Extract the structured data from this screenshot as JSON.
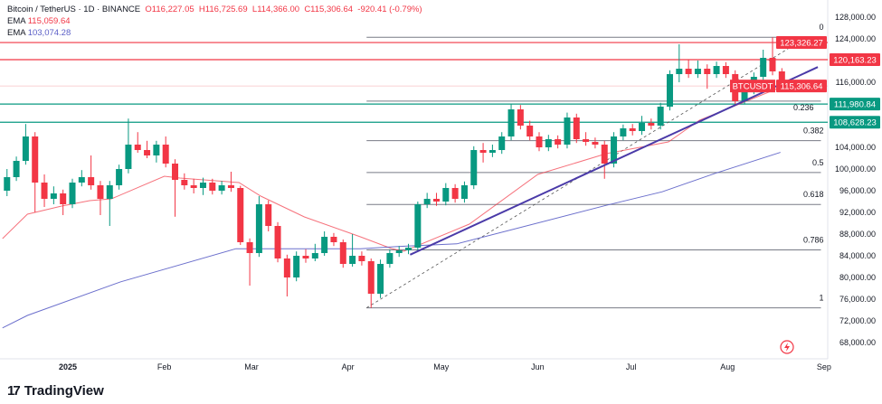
{
  "header": {
    "symbol": "Bitcoin / TetherUS · 1D · BINANCE",
    "open": "O116,227.05",
    "high": "H116,725.69",
    "low": "L114,366.00",
    "close": "C115,306.64",
    "change": "-920.41 (-0.79%)",
    "ema1_label": "EMA",
    "ema1_value": "115,059.64",
    "ema2_label": "EMA",
    "ema2_value": "103,074.28"
  },
  "brand": {
    "name": "TradingView",
    "logo_text": "17"
  },
  "colors": {
    "up": "#089981",
    "down": "#f23645",
    "ema_fast": "#f23645",
    "ema_slow": "#5b5fc7",
    "trendline": "#4a3aa8",
    "support": "#089981",
    "resistance": "#f23645"
  },
  "chart_data": {
    "type": "candlestick",
    "x_ticks": [
      {
        "date": "2025-01-01",
        "label": "2025"
      },
      {
        "date": "2025-02-01",
        "label": "Feb"
      },
      {
        "date": "2025-03-01",
        "label": "Mar"
      },
      {
        "date": "2025-04-01",
        "label": "Apr"
      },
      {
        "date": "2025-05-01",
        "label": "May"
      },
      {
        "date": "2025-06-01",
        "label": "Jun"
      },
      {
        "date": "2025-07-01",
        "label": "Jul"
      },
      {
        "date": "2025-08-01",
        "label": "Aug"
      },
      {
        "date": "2025-09-01",
        "label": "Sep"
      }
    ],
    "y_ticks": [
      "128,000.00",
      "124,000.00",
      "116,000.00",
      "104,000.00",
      "100,000.00",
      "96,000.00",
      "92,000.00",
      "88,000.00",
      "84,000.00",
      "80,000.00",
      "76,000.00",
      "72,000.00",
      "68,000.00"
    ],
    "y_tick_values": [
      128000,
      124000,
      116000,
      104000,
      100000,
      96000,
      92000,
      88000,
      84000,
      80000,
      76000,
      72000,
      68000
    ],
    "ylim": [
      64000,
      131000
    ],
    "candles": [
      [
        "2024-12-11",
        96000,
        100000,
        95000,
        98500
      ],
      [
        "2024-12-14",
        98500,
        102300,
        97800,
        101500
      ],
      [
        "2024-12-17",
        101500,
        108300,
        100800,
        106000
      ],
      [
        "2024-12-20",
        106000,
        106800,
        92000,
        97500
      ],
      [
        "2024-12-23",
        97500,
        99000,
        93000,
        94500
      ],
      [
        "2024-12-26",
        94500,
        96800,
        93500,
        95500
      ],
      [
        "2024-12-29",
        95500,
        96200,
        91500,
        93500
      ],
      [
        "2025-01-01",
        93500,
        98200,
        92800,
        97500
      ],
      [
        "2025-01-04",
        97500,
        99800,
        96800,
        98500
      ],
      [
        "2025-01-07",
        98500,
        102500,
        96200,
        97000
      ],
      [
        "2025-01-10",
        97000,
        97800,
        91500,
        94500
      ],
      [
        "2025-01-13",
        94500,
        97800,
        89500,
        97000
      ],
      [
        "2025-01-16",
        97000,
        100800,
        96200,
        100000
      ],
      [
        "2025-01-19",
        100000,
        109300,
        99200,
        104500
      ],
      [
        "2025-01-22",
        104500,
        106800,
        103000,
        103500
      ],
      [
        "2025-01-25",
        103500,
        105200,
        102000,
        102500
      ],
      [
        "2025-01-28",
        102500,
        105200,
        101200,
        104500
      ],
      [
        "2025-01-31",
        104500,
        106000,
        100300,
        101000
      ],
      [
        "2025-02-03",
        101000,
        101800,
        91200,
        98000
      ],
      [
        "2025-02-06",
        98000,
        99200,
        96200,
        97000
      ],
      [
        "2025-02-09",
        97000,
        98200,
        95500,
        96500
      ],
      [
        "2025-02-12",
        96500,
        98400,
        95200,
        97500
      ],
      [
        "2025-02-15",
        97500,
        98200,
        95300,
        96000
      ],
      [
        "2025-02-18",
        96000,
        97800,
        95300,
        97000
      ],
      [
        "2025-02-21",
        97000,
        99500,
        95800,
        96500
      ],
      [
        "2025-02-24",
        96500,
        96900,
        86000,
        86500
      ],
      [
        "2025-02-27",
        86500,
        87200,
        78500,
        84500
      ],
      [
        "2025-03-02",
        84500,
        95000,
        83800,
        93500
      ],
      [
        "2025-03-05",
        93500,
        94200,
        88500,
        89500
      ],
      [
        "2025-03-08",
        89500,
        90200,
        82800,
        83500
      ],
      [
        "2025-03-11",
        83500,
        84200,
        76500,
        80000
      ],
      [
        "2025-03-14",
        80000,
        84800,
        79300,
        84000
      ],
      [
        "2025-03-17",
        84000,
        85200,
        82700,
        83500
      ],
      [
        "2025-03-20",
        83500,
        86200,
        83000,
        84500
      ],
      [
        "2025-03-23",
        84500,
        88500,
        84000,
        87500
      ],
      [
        "2025-03-26",
        87500,
        88200,
        85800,
        86500
      ],
      [
        "2025-03-29",
        86500,
        87000,
        81800,
        82500
      ],
      [
        "2025-04-01",
        82500,
        88000,
        82000,
        84000
      ],
      [
        "2025-04-04",
        84000,
        84800,
        82200,
        83000
      ],
      [
        "2025-04-07",
        83000,
        83500,
        74400,
        77000
      ],
      [
        "2025-04-10",
        77000,
        83300,
        76200,
        82500
      ],
      [
        "2025-04-13",
        82500,
        85200,
        81800,
        84500
      ],
      [
        "2025-04-16",
        84500,
        85800,
        83800,
        85000
      ],
      [
        "2025-04-19",
        85000,
        86200,
        84300,
        85500
      ],
      [
        "2025-04-22",
        85500,
        94000,
        85000,
        93500
      ],
      [
        "2025-04-25",
        93500,
        95600,
        92800,
        94500
      ],
      [
        "2025-04-28",
        94500,
        95600,
        93200,
        94000
      ],
      [
        "2025-05-01",
        94000,
        97400,
        93300,
        96500
      ],
      [
        "2025-05-04",
        96500,
        97200,
        93800,
        94500
      ],
      [
        "2025-05-07",
        94500,
        97700,
        93800,
        97000
      ],
      [
        "2025-05-10",
        97000,
        104200,
        96300,
        103500
      ],
      [
        "2025-05-13",
        103500,
        104800,
        101200,
        103000
      ],
      [
        "2025-05-16",
        103000,
        104500,
        102200,
        103500
      ],
      [
        "2025-05-19",
        103500,
        106800,
        102800,
        106000
      ],
      [
        "2025-05-22",
        106000,
        112000,
        105300,
        111000
      ],
      [
        "2025-05-25",
        111000,
        111800,
        107300,
        108000
      ],
      [
        "2025-05-28",
        108000,
        108900,
        105300,
        106000
      ],
      [
        "2025-05-31",
        106000,
        106800,
        103300,
        104000
      ],
      [
        "2025-06-03",
        104000,
        106300,
        103300,
        105500
      ],
      [
        "2025-06-06",
        105500,
        106200,
        103800,
        104500
      ],
      [
        "2025-06-09",
        104500,
        110400,
        103800,
        109500
      ],
      [
        "2025-06-12",
        109500,
        110200,
        104800,
        105500
      ],
      [
        "2025-06-15",
        105500,
        106800,
        104300,
        105000
      ],
      [
        "2025-06-18",
        105000,
        105800,
        103800,
        104500
      ],
      [
        "2025-06-21",
        104500,
        105200,
        98200,
        101000
      ],
      [
        "2025-06-24",
        101000,
        106800,
        100300,
        106000
      ],
      [
        "2025-06-27",
        106000,
        108200,
        105300,
        107500
      ],
      [
        "2025-06-30",
        107500,
        108300,
        106200,
        107000
      ],
      [
        "2025-07-03",
        107000,
        109800,
        106300,
        108500
      ],
      [
        "2025-07-06",
        108500,
        109300,
        107300,
        108000
      ],
      [
        "2025-07-09",
        108000,
        112200,
        107300,
        111500
      ],
      [
        "2025-07-12",
        111500,
        118200,
        110800,
        117500
      ],
      [
        "2025-07-15",
        117500,
        123000,
        116000,
        118500
      ],
      [
        "2025-07-18",
        118500,
        120200,
        116800,
        117500
      ],
      [
        "2025-07-21",
        117500,
        120000,
        116800,
        118500
      ],
      [
        "2025-07-24",
        118500,
        119300,
        114800,
        117500
      ],
      [
        "2025-07-27",
        117500,
        119800,
        116800,
        119000
      ],
      [
        "2025-07-30",
        119000,
        119700,
        116800,
        117500
      ],
      [
        "2025-08-02",
        117500,
        118200,
        112000,
        112500
      ],
      [
        "2025-08-05",
        112500,
        115200,
        111900,
        114500
      ],
      [
        "2025-08-08",
        114500,
        117800,
        113800,
        117000
      ],
      [
        "2025-08-11",
        117000,
        122000,
        116300,
        120500
      ],
      [
        "2025-08-14",
        120500,
        124300,
        117300,
        118000
      ],
      [
        "2025-08-17",
        118000,
        118600,
        114366,
        115306.64
      ]
    ],
    "series": [
      {
        "type": "line",
        "role": "ema-fast",
        "points": [
          [
            "2024-12-11",
            87167
          ],
          [
            "2024-12-19",
            91667
          ],
          [
            "2024-12-30",
            93167
          ],
          [
            "2025-01-08",
            94167
          ],
          [
            "2025-01-15",
            94500
          ],
          [
            "2025-02-01",
            98667
          ],
          [
            "2025-02-06",
            98333
          ],
          [
            "2025-02-25",
            97500
          ],
          [
            "2025-03-04",
            95000
          ],
          [
            "2025-03-18",
            91167
          ],
          [
            "2025-04-05",
            87500
          ],
          [
            "2025-04-15",
            85333
          ],
          [
            "2025-04-19",
            84833
          ],
          [
            "2025-05-10",
            89833
          ],
          [
            "2025-06-01",
            99000
          ],
          [
            "2025-06-23",
            102833
          ],
          [
            "2025-07-13",
            105000
          ],
          [
            "2025-07-23",
            109000
          ],
          [
            "2025-08-07",
            112500
          ],
          [
            "2025-08-18",
            115059.64
          ]
        ]
      },
      {
        "type": "line",
        "role": "ema-slow",
        "points": [
          [
            "2024-12-11",
            70700
          ],
          [
            "2024-12-19",
            73000
          ],
          [
            "2025-01-18",
            79200
          ],
          [
            "2025-02-24",
            85300
          ],
          [
            "2025-04-05",
            85300
          ],
          [
            "2025-04-17",
            85700
          ],
          [
            "2025-05-06",
            86200
          ],
          [
            "2025-06-23",
            93300
          ],
          [
            "2025-07-11",
            95800
          ],
          [
            "2025-07-28",
            99200
          ],
          [
            "2025-08-18",
            103074.28
          ]
        ]
      }
    ],
    "trendline": {
      "from": [
        "2025-04-21",
        84200
      ],
      "to": [
        "2025-08-30",
        118800
      ]
    },
    "fib_diagonal": {
      "from": [
        "2025-04-07",
        74400
      ],
      "to": [
        "2025-08-27",
        124500
      ]
    },
    "fib_retracement": {
      "from_date": "2025-04-07",
      "to_date": "2025-08-31",
      "high": 124300,
      "low": 74400,
      "levels": [
        {
          "ratio": 0,
          "label": "0"
        },
        {
          "ratio": 0.236,
          "label": "0.236"
        },
        {
          "ratio": 0.382,
          "label": "0.382"
        },
        {
          "ratio": 0.5,
          "label": "0.5"
        },
        {
          "ratio": 0.618,
          "label": "0.618"
        },
        {
          "ratio": 0.786,
          "label": "0.786"
        },
        {
          "ratio": 1,
          "label": "1"
        }
      ]
    },
    "horizontal_levels": [
      {
        "value": 123326.27,
        "label": "123,326.27",
        "kind": "resistance"
      },
      {
        "value": 120163.23,
        "label": "120,163.23",
        "kind": "resistance"
      },
      {
        "value": 111980.84,
        "label": "111,980.84",
        "kind": "support"
      },
      {
        "value": 108628.23,
        "label": "108,628.23",
        "kind": "support"
      }
    ],
    "last_price": {
      "value": 115306.64,
      "label": "115,306.64",
      "symbol": "BTCUSDT"
    }
  }
}
